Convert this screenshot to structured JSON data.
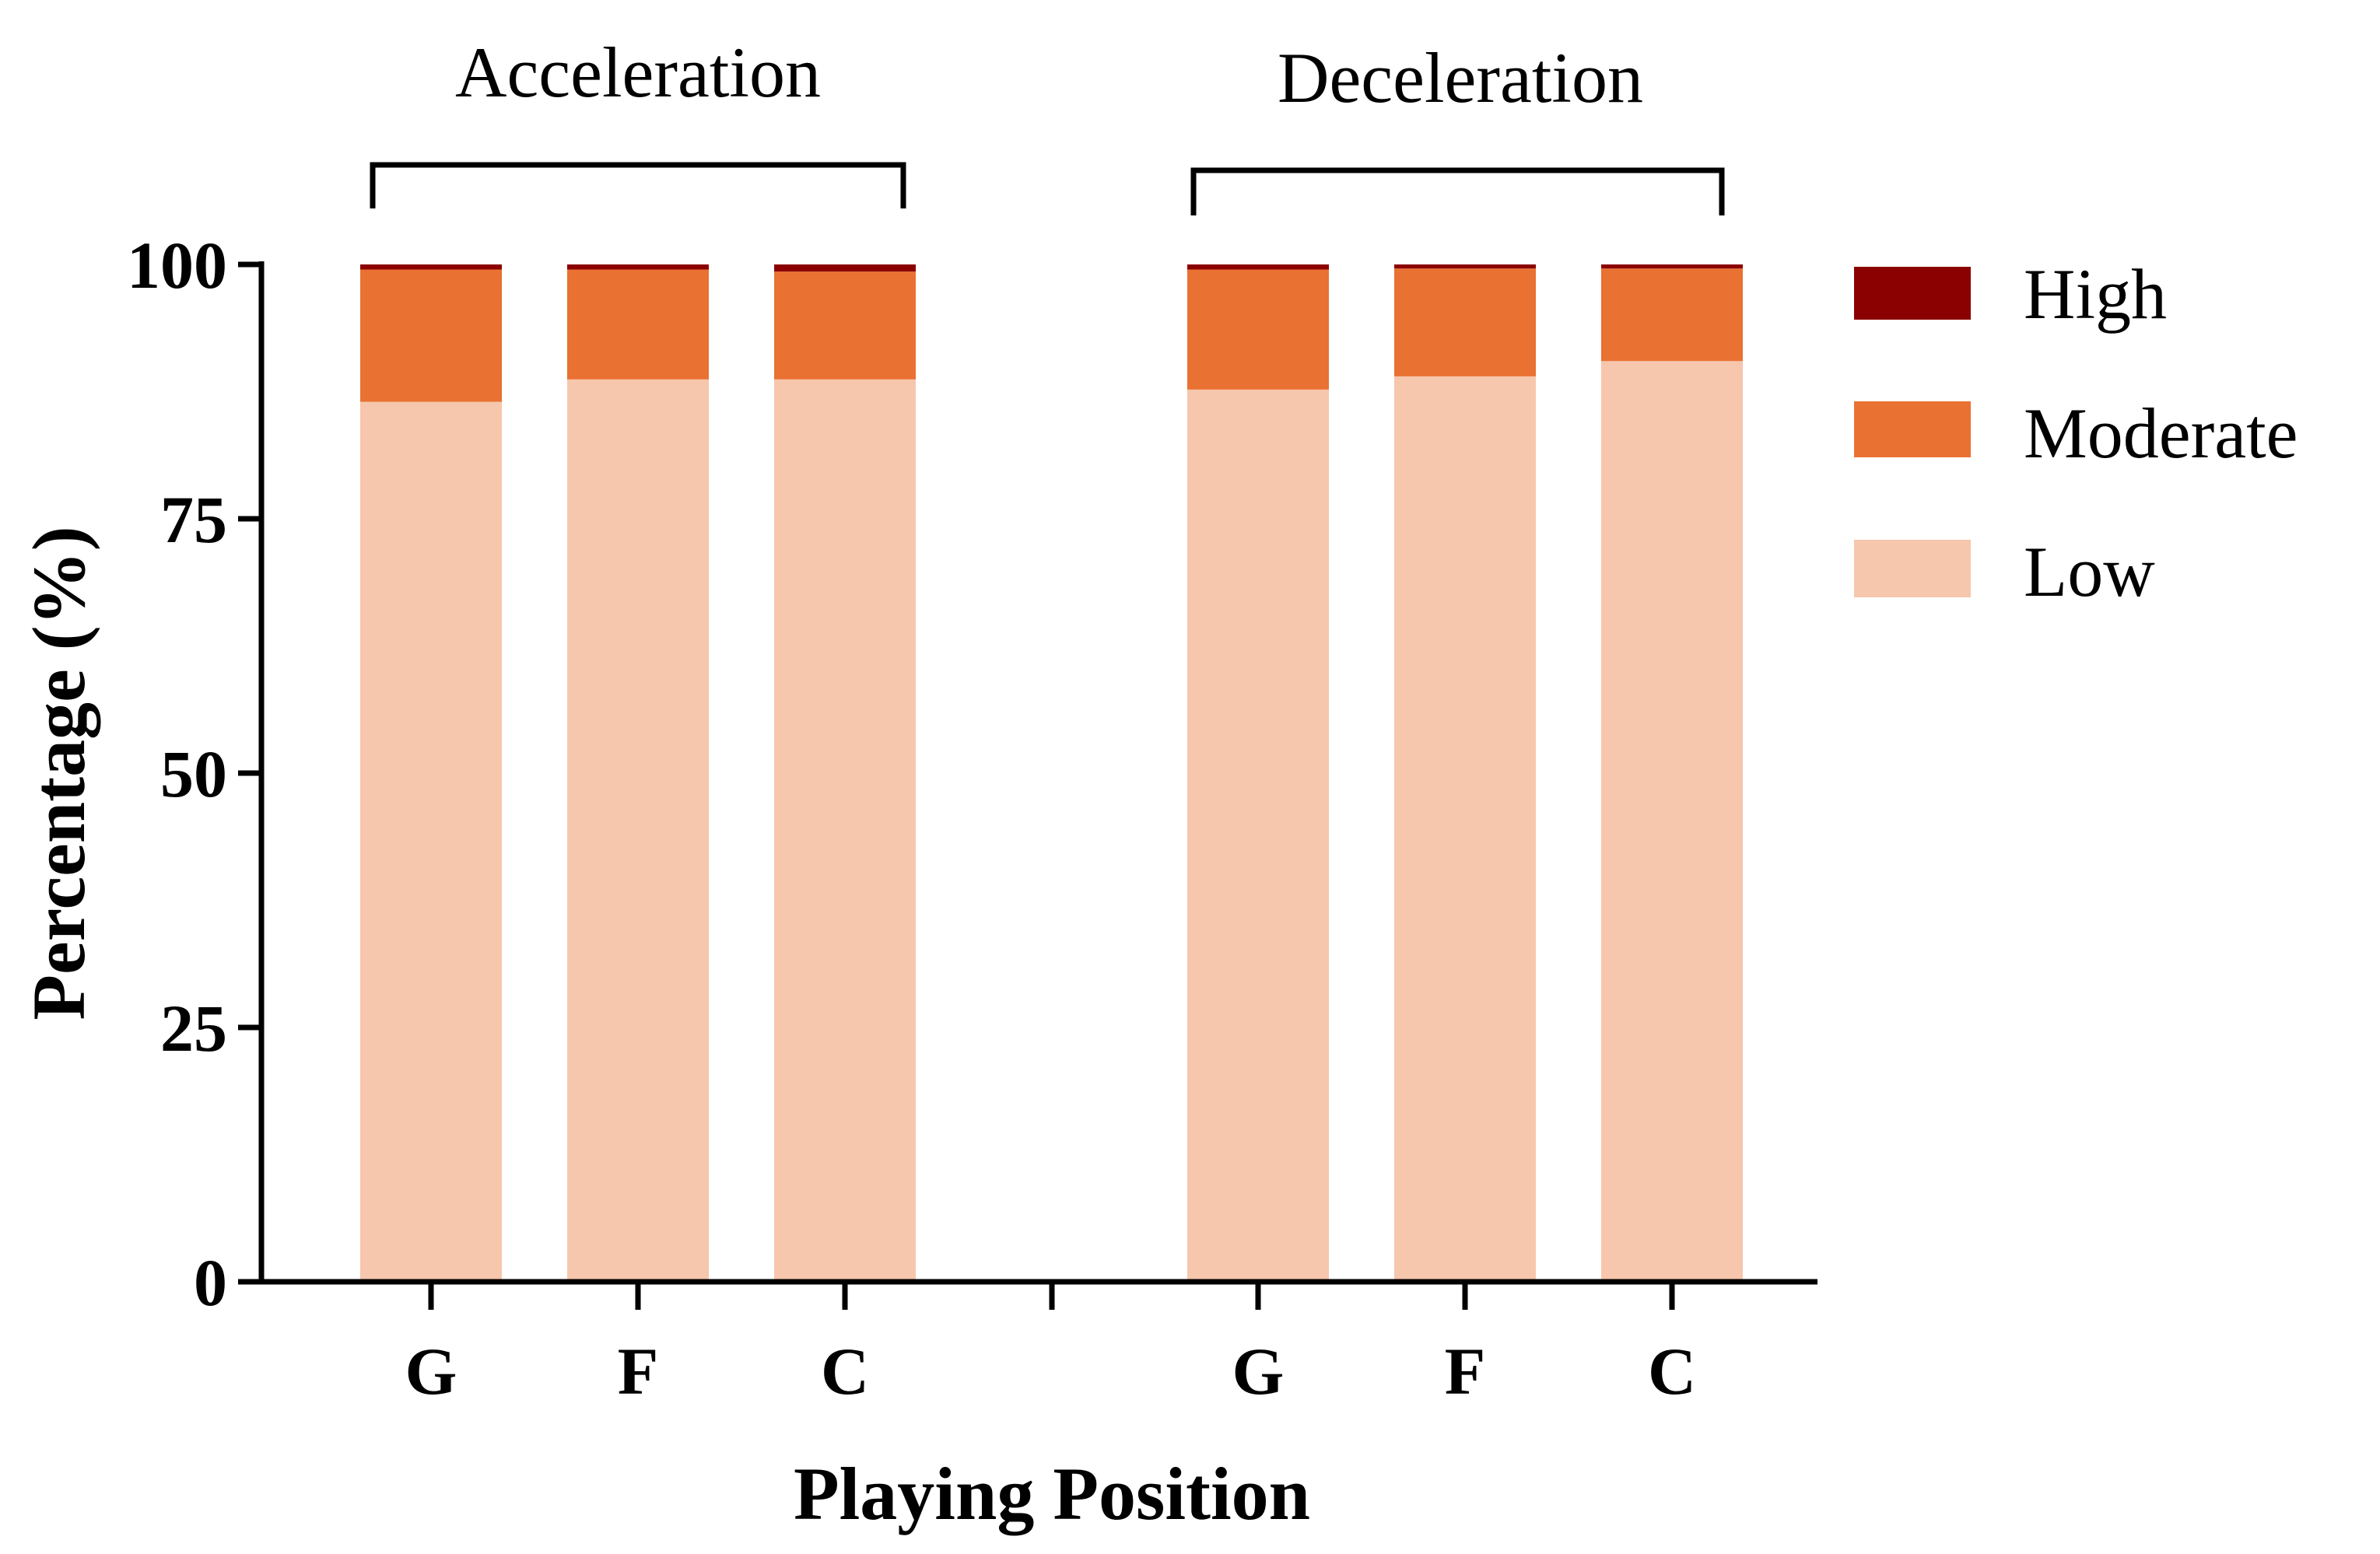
{
  "chart_data": {
    "type": "bar",
    "stacked": true,
    "groups": [
      {
        "label": "Acceleration",
        "categories": [
          "G",
          "F",
          "C"
        ]
      },
      {
        "label": "Deceleration",
        "categories": [
          "G",
          "F",
          "C"
        ]
      }
    ],
    "categories": [
      "G",
      "F",
      "C",
      "G",
      "F",
      "C"
    ],
    "series": [
      {
        "name": "Low",
        "color": "#F6C6AD",
        "values": [
          86.5,
          88.7,
          88.7,
          87.7,
          89.0,
          90.5
        ]
      },
      {
        "name": "Moderate",
        "color": "#E97132",
        "values": [
          13.0,
          10.8,
          10.6,
          11.8,
          10.6,
          9.1
        ]
      },
      {
        "name": "High",
        "color": "#8B0000",
        "values": [
          0.5,
          0.5,
          0.7,
          0.5,
          0.4,
          0.4
        ]
      }
    ],
    "ylabel": "Percentage (%)",
    "xlabel": "Playing Position",
    "ylim": [
      0,
      100
    ],
    "yticks": [
      "0",
      "25",
      "50",
      "75",
      "100"
    ],
    "legend": {
      "position": "right",
      "order": [
        "High",
        "Moderate",
        "Low"
      ]
    },
    "grid": false
  }
}
